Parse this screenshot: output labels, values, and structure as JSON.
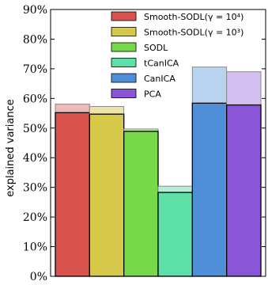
{
  "chart_data": {
    "type": "bar",
    "ylabel": "explained variance",
    "ylim": [
      0,
      90
    ],
    "yticks": [
      0,
      10,
      20,
      30,
      40,
      50,
      60,
      70,
      80,
      90
    ],
    "ytick_labels": [
      "0%",
      "10%",
      "20%",
      "30%",
      "40%",
      "50%",
      "60%",
      "70%",
      "80%",
      "90%"
    ],
    "legend_position": "top-right",
    "series": [
      {
        "name": "Smooth-SODL(γ = 10⁴)",
        "value": 55.2,
        "upper": 58.1,
        "color": "#d9534f",
        "light_color": "#eebbbb"
      },
      {
        "name": "Smooth-SODL(γ = 10³)",
        "value": 54.7,
        "upper": 57.3,
        "color": "#d6c94a",
        "light_color": "#ece3a8"
      },
      {
        "name": "SODL",
        "value": 48.9,
        "upper": 49.7,
        "color": "#77d94a",
        "light_color": "#bfeaa8"
      },
      {
        "name": "tCanICA",
        "value": 28.3,
        "upper": 30.4,
        "color": "#5ddfa8",
        "light_color": "#b5efd6"
      },
      {
        "name": "CanICA",
        "value": 58.4,
        "upper": 70.6,
        "color": "#4f8fd8",
        "light_color": "#b8d3f0"
      },
      {
        "name": "PCA",
        "value": 57.8,
        "upper": 69.0,
        "color": "#8b55d8",
        "light_color": "#d3c0f0"
      }
    ]
  }
}
